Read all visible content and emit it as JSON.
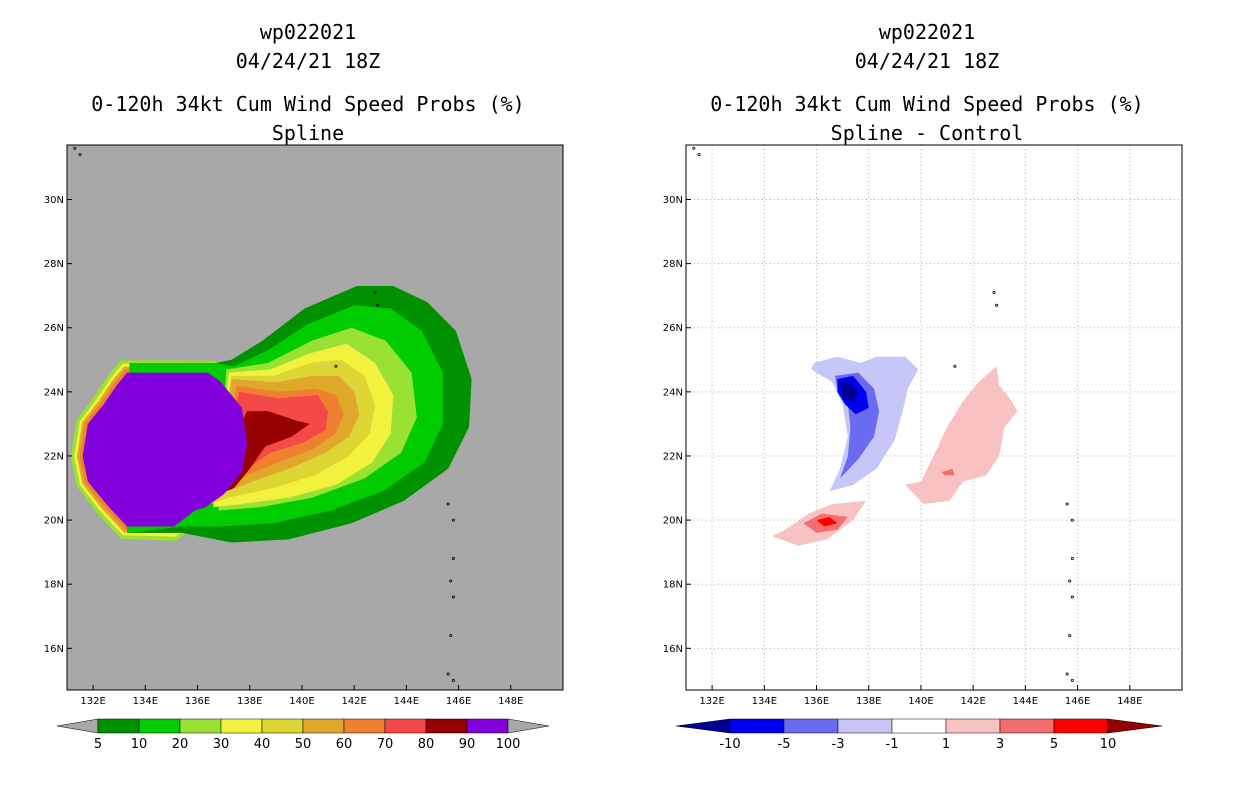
{
  "chart_data": [
    {
      "type": "heatmap",
      "storm_id": "wp022021",
      "datetime": "04/24/21 18Z",
      "title": "0-120h 34kt Cum Wind Speed Probs (%)",
      "subtitle": "Spline",
      "xlim": [
        131.0,
        150.0
      ],
      "ylim": [
        14.7,
        31.7
      ],
      "x_ticks": [
        132,
        134,
        136,
        138,
        140,
        142,
        144,
        146,
        148
      ],
      "x_tick_labels": [
        "132E",
        "134E",
        "136E",
        "138E",
        "140E",
        "142E",
        "144E",
        "146E",
        "148E"
      ],
      "y_ticks": [
        16,
        18,
        20,
        22,
        24,
        26,
        28,
        30
      ],
      "y_tick_labels": [
        "16N",
        "18N",
        "20N",
        "22N",
        "24N",
        "26N",
        "28N",
        "30N"
      ],
      "grid": false,
      "background": "#a8a8a8",
      "colorbar_levels": [
        "5",
        "10",
        "20",
        "30",
        "40",
        "50",
        "60",
        "70",
        "80",
        "90",
        "100"
      ],
      "colorbar_colors": [
        "#009100",
        "#00cc00",
        "#99e233",
        "#f2f23e",
        "#ddd533",
        "#e0a82a",
        "#ee8030",
        "#f54848",
        "#960000",
        "#8200dc"
      ],
      "contours": [
        {
          "level": 5,
          "color": "#009100",
          "points": [
            [
              133.4,
              24.9
            ],
            [
              136.7,
              24.9
            ],
            [
              137.3,
              25.0
            ],
            [
              138.5,
              25.6
            ],
            [
              140.1,
              26.6
            ],
            [
              142.1,
              27.3
            ],
            [
              143.5,
              27.3
            ],
            [
              144.8,
              26.8
            ],
            [
              145.9,
              25.9
            ],
            [
              146.5,
              24.4
            ],
            [
              146.4,
              22.9
            ],
            [
              145.6,
              21.6
            ],
            [
              143.9,
              20.6
            ],
            [
              141.9,
              19.9
            ],
            [
              139.5,
              19.4
            ],
            [
              137.3,
              19.3
            ],
            [
              135.4,
              19.6
            ],
            [
              133.3,
              19.6
            ]
          ]
        },
        {
          "level": 10,
          "color": "#00cc00",
          "points": [
            [
              133.4,
              24.9
            ],
            [
              136.7,
              24.9
            ],
            [
              137.4,
              24.8
            ],
            [
              138.7,
              25.3
            ],
            [
              140.2,
              26.1
            ],
            [
              142.0,
              26.7
            ],
            [
              143.4,
              26.6
            ],
            [
              144.6,
              25.9
            ],
            [
              145.4,
              24.6
            ],
            [
              145.4,
              23.0
            ],
            [
              144.7,
              21.8
            ],
            [
              143.1,
              20.9
            ],
            [
              141.1,
              20.3
            ],
            [
              138.9,
              19.9
            ],
            [
              136.9,
              19.8
            ],
            [
              135.4,
              19.8
            ],
            [
              133.3,
              19.6
            ]
          ]
        },
        {
          "level": 20,
          "color": "#99e233",
          "points": [
            [
              137.1,
              24.7
            ],
            [
              138.7,
              24.9
            ],
            [
              140.4,
              25.6
            ],
            [
              141.9,
              26.0
            ],
            [
              143.2,
              25.6
            ],
            [
              144.2,
              24.6
            ],
            [
              144.4,
              23.2
            ],
            [
              143.8,
              22.1
            ],
            [
              142.4,
              21.3
            ],
            [
              140.4,
              20.7
            ],
            [
              138.4,
              20.4
            ],
            [
              136.8,
              20.3
            ]
          ]
        },
        {
          "level": 30,
          "color": "#f2f23e",
          "points": [
            [
              137.2,
              24.6
            ],
            [
              138.8,
              24.7
            ],
            [
              140.3,
              25.2
            ],
            [
              141.7,
              25.5
            ],
            [
              142.8,
              24.9
            ],
            [
              143.5,
              23.9
            ],
            [
              143.4,
              22.7
            ],
            [
              142.7,
              21.8
            ],
            [
              141.3,
              21.1
            ],
            [
              139.5,
              20.7
            ],
            [
              137.7,
              20.5
            ],
            [
              136.6,
              20.4
            ]
          ]
        },
        {
          "level": 40,
          "color": "#ddd533",
          "points": [
            [
              137.3,
              24.5
            ],
            [
              138.9,
              24.5
            ],
            [
              140.3,
              24.9
            ],
            [
              141.5,
              25.0
            ],
            [
              142.4,
              24.5
            ],
            [
              142.8,
              23.6
            ],
            [
              142.6,
              22.7
            ],
            [
              141.8,
              22.0
            ],
            [
              140.5,
              21.4
            ],
            [
              138.9,
              21.0
            ],
            [
              137.2,
              20.7
            ],
            [
              136.5,
              20.5
            ]
          ]
        },
        {
          "level": 50,
          "color": "#e0a82a",
          "points": [
            [
              137.3,
              24.4
            ],
            [
              139.0,
              24.3
            ],
            [
              140.4,
              24.5
            ],
            [
              141.4,
              24.5
            ],
            [
              142.0,
              24.0
            ],
            [
              142.2,
              23.3
            ],
            [
              141.8,
              22.6
            ],
            [
              140.9,
              22.1
            ],
            [
              139.5,
              21.6
            ],
            [
              138.1,
              21.2
            ],
            [
              136.8,
              20.8
            ]
          ]
        },
        {
          "level": 60,
          "color": "#ee8030",
          "points": [
            [
              137.5,
              24.2
            ],
            [
              139.1,
              24.0
            ],
            [
              140.5,
              24.1
            ],
            [
              141.3,
              23.9
            ],
            [
              141.6,
              23.3
            ],
            [
              141.3,
              22.7
            ],
            [
              140.4,
              22.2
            ],
            [
              139.1,
              21.8
            ],
            [
              137.9,
              21.4
            ],
            [
              136.8,
              20.9
            ]
          ]
        },
        {
          "level": 70,
          "color": "#f54848",
          "points": [
            [
              137.6,
              24.0
            ],
            [
              139.1,
              23.8
            ],
            [
              140.6,
              23.9
            ],
            [
              141.0,
              23.4
            ],
            [
              140.9,
              22.8
            ],
            [
              140.0,
              22.4
            ],
            [
              138.8,
              22.1
            ],
            [
              137.7,
              21.5
            ],
            [
              136.7,
              21.0
            ]
          ]
        },
        {
          "level": 80,
          "color": "#960000",
          "points": [
            [
              137.9,
              23.4
            ],
            [
              138.7,
              23.4
            ],
            [
              139.8,
              23.1
            ],
            [
              140.3,
              23.0
            ],
            [
              139.6,
              22.6
            ],
            [
              138.6,
              22.3
            ],
            [
              138.0,
              21.6
            ],
            [
              137.4,
              21.0
            ],
            [
              136.5,
              20.7
            ],
            [
              136.1,
              20.4
            ]
          ]
        },
        {
          "level": 90,
          "color": "#8200dc",
          "points": [
            [
              133.3,
              24.6
            ],
            [
              136.4,
              24.6
            ],
            [
              136.9,
              24.3
            ],
            [
              137.7,
              23.5
            ],
            [
              137.9,
              22.4
            ],
            [
              137.7,
              21.5
            ],
            [
              137.0,
              20.8
            ],
            [
              136.3,
              20.4
            ],
            [
              135.9,
              20.3
            ],
            [
              135.1,
              19.8
            ],
            [
              133.3,
              19.8
            ],
            [
              132.5,
              20.5
            ],
            [
              131.8,
              21.2
            ],
            [
              131.6,
              22.0
            ],
            [
              131.8,
              23.0
            ],
            [
              132.4,
              23.6
            ],
            [
              132.9,
              24.2
            ]
          ]
        }
      ],
      "warning_band_colors": [
        "#99e233",
        "#f2f23e",
        "#e0a82a",
        "#ee8030"
      ]
    },
    {
      "type": "heatmap",
      "storm_id": "wp022021",
      "datetime": "04/24/21 18Z",
      "title": "0-120h 34kt Cum Wind Speed Probs (%)",
      "subtitle": "Spline - Control",
      "xlim": [
        131.0,
        150.0
      ],
      "ylim": [
        14.7,
        31.7
      ],
      "x_ticks": [
        132,
        134,
        136,
        138,
        140,
        142,
        144,
        146,
        148
      ],
      "x_tick_labels": [
        "132E",
        "134E",
        "136E",
        "138E",
        "140E",
        "142E",
        "144E",
        "146E",
        "148E"
      ],
      "y_ticks": [
        16,
        18,
        20,
        22,
        24,
        26,
        28,
        30
      ],
      "y_tick_labels": [
        "16N",
        "18N",
        "20N",
        "22N",
        "24N",
        "26N",
        "28N",
        "30N"
      ],
      "grid": true,
      "background": "#ffffff",
      "colorbar_levels": [
        "-10",
        "-5",
        "-3",
        "-1",
        "1",
        "3",
        "5",
        "10"
      ],
      "colorbar_colors": [
        "#000096",
        "#0000f0",
        "#6b6bf2",
        "#c6c6f8",
        "#ffffff",
        "#f9c2c2",
        "#f36e6e",
        "#ff0000",
        "#960000"
      ],
      "contours": [
        {
          "level": -1,
          "color": "#c6c6f8",
          "points": [
            [
              135.9,
              24.9
            ],
            [
              136.8,
              25.1
            ],
            [
              137.7,
              24.9
            ],
            [
              138.3,
              25.1
            ],
            [
              139.4,
              25.1
            ],
            [
              139.9,
              24.7
            ],
            [
              139.5,
              24.1
            ],
            [
              139.3,
              23.4
            ],
            [
              139.0,
              22.5
            ],
            [
              138.3,
              21.6
            ],
            [
              137.4,
              21.1
            ],
            [
              136.5,
              20.9
            ],
            [
              136.9,
              21.6
            ],
            [
              137.2,
              22.6
            ],
            [
              137.0,
              23.6
            ],
            [
              136.6,
              24.3
            ],
            [
              135.8,
              24.7
            ]
          ]
        },
        {
          "level": -3,
          "color": "#6b6bf2",
          "points": [
            [
              136.7,
              24.5
            ],
            [
              137.6,
              24.6
            ],
            [
              138.2,
              24.1
            ],
            [
              138.4,
              23.4
            ],
            [
              138.2,
              22.6
            ],
            [
              137.6,
              21.9
            ],
            [
              136.9,
              21.3
            ],
            [
              137.2,
              22.0
            ],
            [
              137.3,
              22.9
            ],
            [
              137.2,
              23.6
            ],
            [
              136.8,
              24.1
            ]
          ]
        },
        {
          "level": -5,
          "color": "#0000f0",
          "points": [
            [
              136.8,
              24.4
            ],
            [
              137.4,
              24.5
            ],
            [
              137.9,
              24.0
            ],
            [
              138.0,
              23.5
            ],
            [
              137.5,
              23.3
            ],
            [
              137.1,
              23.6
            ],
            [
              136.8,
              24.0
            ]
          ]
        },
        {
          "level": -10,
          "color": "#000096",
          "points": [
            [
              136.9,
              24.3
            ],
            [
              137.3,
              24.3
            ],
            [
              137.6,
              24.0
            ],
            [
              137.4,
              23.7
            ],
            [
              137.0,
              23.8
            ]
          ]
        },
        {
          "level": 1,
          "color": "#f9c2c2",
          "points": [
            [
              134.3,
              19.5
            ],
            [
              134.8,
              19.7
            ],
            [
              135.7,
              20.2
            ],
            [
              136.6,
              20.5
            ],
            [
              137.9,
              20.6
            ],
            [
              137.4,
              20.0
            ],
            [
              136.4,
              19.4
            ],
            [
              135.3,
              19.2
            ]
          ]
        },
        {
          "level": 1,
          "color": "#f9c2c2",
          "points": [
            [
              140.0,
              21.2
            ],
            [
              140.6,
              22.2
            ],
            [
              141.0,
              22.9
            ],
            [
              141.6,
              23.7
            ],
            [
              142.2,
              24.3
            ],
            [
              142.9,
              24.8
            ],
            [
              143.0,
              24.2
            ],
            [
              143.4,
              23.8
            ],
            [
              143.7,
              23.4
            ],
            [
              143.2,
              22.9
            ],
            [
              143.0,
              22.0
            ],
            [
              142.5,
              21.4
            ],
            [
              141.6,
              21.2
            ],
            [
              141.1,
              20.6
            ],
            [
              140.1,
              20.5
            ],
            [
              139.4,
              21.1
            ]
          ]
        },
        {
          "level": 3,
          "color": "#f36e6e",
          "points": [
            [
              135.5,
              19.9
            ],
            [
              136.2,
              20.2
            ],
            [
              137.2,
              20.1
            ],
            [
              136.8,
              19.7
            ],
            [
              136.0,
              19.6
            ]
          ]
        },
        {
          "level": 3,
          "color": "#f36e6e",
          "points": [
            [
              140.8,
              21.5
            ],
            [
              141.2,
              21.6
            ],
            [
              141.3,
              21.4
            ],
            [
              140.9,
              21.4
            ]
          ]
        },
        {
          "level": 5,
          "color": "#ff0000",
          "points": [
            [
              136.0,
              20.0
            ],
            [
              136.5,
              20.1
            ],
            [
              136.8,
              19.9
            ],
            [
              136.3,
              19.8
            ]
          ]
        }
      ]
    }
  ]
}
